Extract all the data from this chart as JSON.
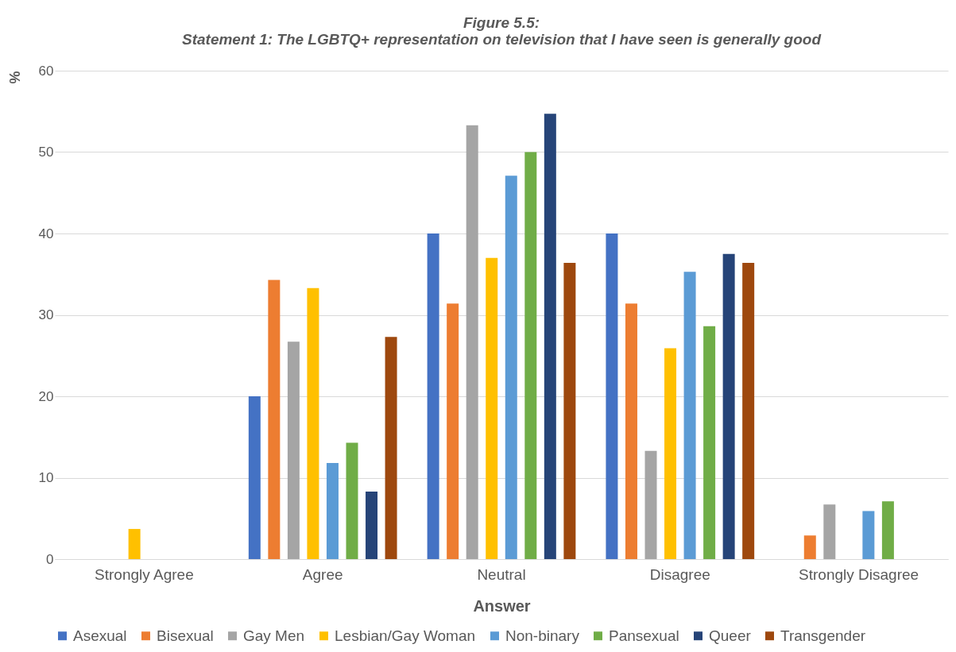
{
  "chart_data": {
    "type": "bar",
    "title": "Figure 5.5:\nStatement 1: The LGBTQ+ representation on television that I have seen is generally good",
    "xlabel": "Answer",
    "ylabel": "%",
    "categories": [
      "Strongly Agree",
      "Agree",
      "Neutral",
      "Disagree",
      "Strongly Disagree"
    ],
    "series": [
      {
        "name": "Asexual",
        "color": "#4472c4",
        "values": [
          0,
          20,
          40,
          40,
          0
        ]
      },
      {
        "name": "Bisexual",
        "color": "#ed7d31",
        "values": [
          0,
          34.3,
          31.4,
          31.4,
          2.9
        ]
      },
      {
        "name": "Gay Men",
        "color": "#a5a5a5",
        "values": [
          0,
          26.7,
          53.3,
          13.3,
          6.7
        ]
      },
      {
        "name": "Lesbian/Gay Woman",
        "color": "#ffc000",
        "values": [
          3.7,
          33.3,
          37.0,
          25.9,
          0
        ]
      },
      {
        "name": "Non-binary",
        "color": "#5b9bd5",
        "values": [
          0,
          11.8,
          47.1,
          35.3,
          5.9
        ]
      },
      {
        "name": "Pansexual",
        "color": "#70ad47",
        "values": [
          0,
          14.3,
          50,
          28.6,
          7.1
        ]
      },
      {
        "name": "Queer",
        "color": "#264478",
        "values": [
          0,
          8.3,
          54.7,
          37.5,
          0
        ]
      },
      {
        "name": "Transgender",
        "color": "#9e480e",
        "values": [
          0,
          27.3,
          36.4,
          36.4,
          0
        ]
      }
    ],
    "ylim": [
      0,
      60
    ],
    "yticks": [
      0,
      10,
      20,
      30,
      40,
      50,
      60
    ],
    "grid": "y",
    "legend": "bottom"
  }
}
